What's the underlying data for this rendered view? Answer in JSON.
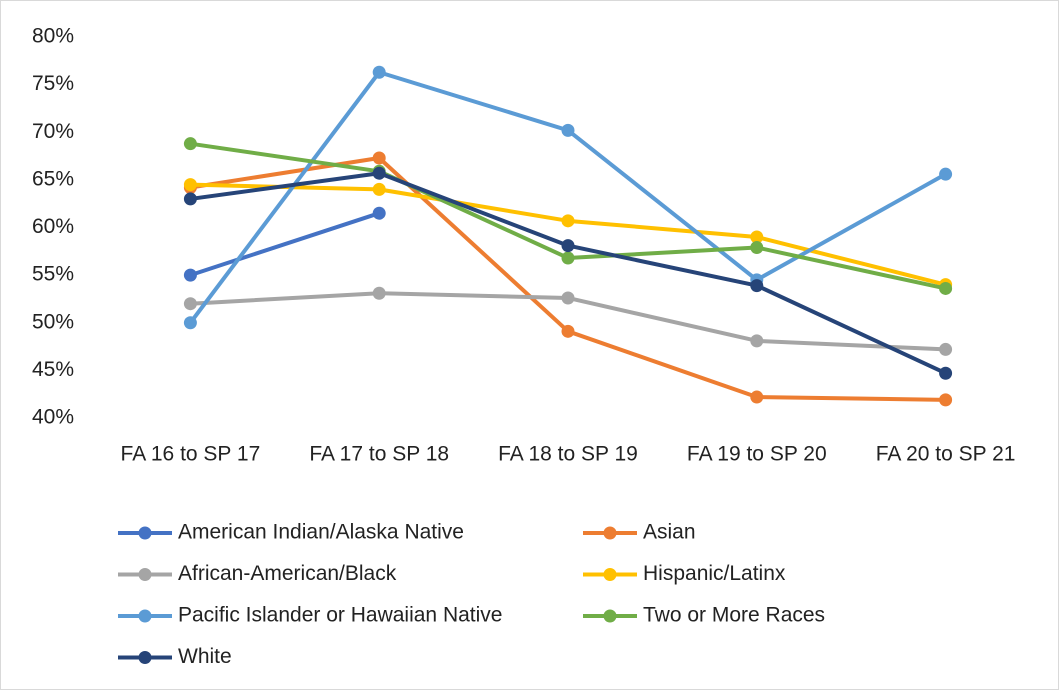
{
  "chart_data": {
    "type": "line",
    "categories": [
      "FA 16 to SP 17",
      "FA 17 to SP 18",
      "FA 18 to SP 19",
      "FA 19 to SP 20",
      "FA 20 to SP 21"
    ],
    "series": [
      {
        "name": "American Indian/Alaska Native",
        "color": "#4472c4",
        "values": [
          55.0,
          61.5,
          null,
          null,
          null
        ]
      },
      {
        "name": "Asian",
        "color": "#ed7d31",
        "values": [
          64.2,
          67.3,
          49.1,
          42.2,
          41.9
        ]
      },
      {
        "name": "African-American/Black",
        "color": "#a5a5a5",
        "values": [
          52.0,
          53.1,
          52.6,
          48.1,
          47.2
        ]
      },
      {
        "name": "Hispanic/Latinx",
        "color": "#ffc000",
        "values": [
          64.5,
          64.0,
          60.7,
          59.0,
          54.0
        ]
      },
      {
        "name": "Pacific Islander or Hawaiian Native",
        "color": "#5b9bd5",
        "values": [
          50.0,
          76.3,
          70.2,
          54.5,
          65.6
        ]
      },
      {
        "name": "Two or More Races",
        "color": "#70ad47",
        "values": [
          68.8,
          65.9,
          56.8,
          57.9,
          53.6
        ]
      },
      {
        "name": "White",
        "color": "#264478",
        "values": [
          63.0,
          65.7,
          58.1,
          53.9,
          44.7
        ]
      }
    ],
    "ylim": [
      40,
      80
    ],
    "yticks": [
      {
        "value": 40,
        "label": "40%"
      },
      {
        "value": 45,
        "label": "45%"
      },
      {
        "value": 50,
        "label": "50%"
      },
      {
        "value": 55,
        "label": "55%"
      },
      {
        "value": 60,
        "label": "60%"
      },
      {
        "value": 65,
        "label": "65%"
      },
      {
        "value": 70,
        "label": "70%"
      },
      {
        "value": 75,
        "label": "75%"
      },
      {
        "value": 80,
        "label": "80%"
      }
    ],
    "grid": false,
    "legend": "bottom"
  }
}
